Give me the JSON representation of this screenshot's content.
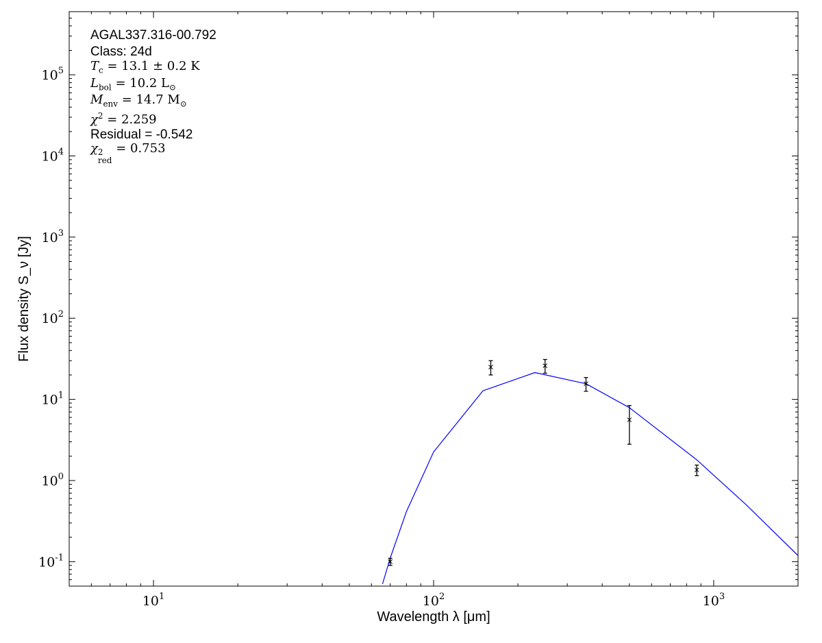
{
  "chart_data": {
    "type": "scatter",
    "xlabel": "Wavelength λ [μm]",
    "ylabel": "Flux density S_ν [Jy]",
    "xscale": "log",
    "yscale": "log",
    "xlim": [
      5,
      2000
    ],
    "ylim": [
      0.05,
      600000
    ],
    "grid": false,
    "x_ticks": [
      {
        "value": 10,
        "label": "10^1"
      },
      {
        "value": 100,
        "label": "10^2"
      },
      {
        "value": 1000,
        "label": "10^3"
      }
    ],
    "y_ticks": [
      {
        "value": 0.1,
        "label": "10^-1"
      },
      {
        "value": 1,
        "label": "10^0"
      },
      {
        "value": 10,
        "label": "10^1"
      },
      {
        "value": 100,
        "label": "10^2"
      },
      {
        "value": 1000,
        "label": "10^3"
      },
      {
        "value": 10000,
        "label": "10^4"
      },
      {
        "value": 100000,
        "label": "10^5"
      }
    ],
    "observations": {
      "color": "#000000",
      "marker": "x",
      "points": [
        {
          "x": 70,
          "y": 0.1,
          "err": 0.01
        },
        {
          "x": 160,
          "y": 25,
          "err": 5
        },
        {
          "x": 250,
          "y": 26,
          "err": 5
        },
        {
          "x": 350,
          "y": 15.6,
          "err": 3
        },
        {
          "x": 500,
          "y": 5.6,
          "err": 2.8
        },
        {
          "x": 870,
          "y": 1.35,
          "err": 0.2
        }
      ]
    },
    "model": {
      "type": "line",
      "color": "#0000ff",
      "points": [
        [
          65.7,
          0.053
        ],
        [
          70,
          0.111
        ],
        [
          80,
          0.416
        ],
        [
          100,
          2.25
        ],
        [
          150,
          12.75
        ],
        [
          230,
          21.4
        ],
        [
          350,
          15.6
        ],
        [
          500,
          7.9
        ],
        [
          870,
          1.8
        ],
        [
          1300,
          0.51
        ],
        [
          2000,
          0.119
        ]
      ]
    },
    "annotations": {
      "source": "AGAL337.316-00.792",
      "class": "Class: 24d",
      "tc": {
        "sym": "T",
        "sub": "c",
        "val": "= 13.1 ± 0.2 K"
      },
      "lbol": {
        "sym": "L",
        "sub": "bol",
        "val": "= 10.2 L",
        "unit_sub": "⊙"
      },
      "menv": {
        "sym": "M",
        "sub": "env",
        "val": "= 14.7 M",
        "unit_sub": "⊙"
      },
      "chi2": {
        "sym": "χ",
        "sup": "2",
        "val": "= 2.259"
      },
      "residual": "Residual = -0.542",
      "chi2red": {
        "sym": "χ",
        "sup": "2",
        "sub": "red",
        "val": "= 0.753"
      }
    }
  }
}
